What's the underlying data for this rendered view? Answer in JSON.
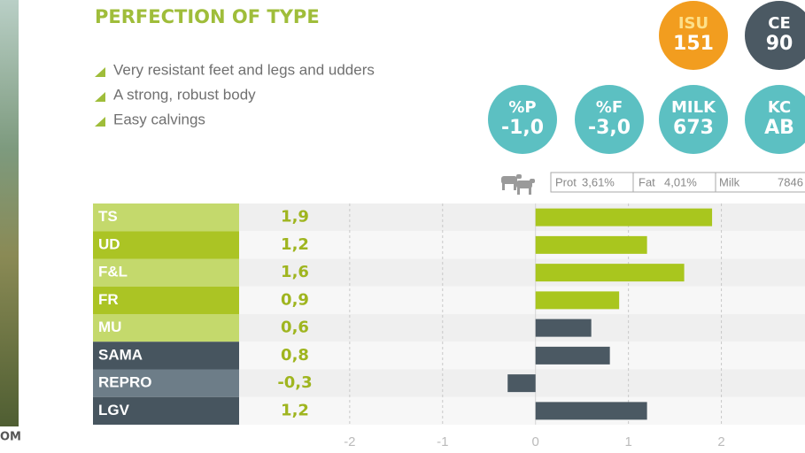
{
  "photo_caption": "OM",
  "header": {
    "title": "PERFECTION OF TYPE",
    "bullets": [
      "Very resistant feet and legs and udders",
      "A strong, robust body",
      "Easy calvings"
    ]
  },
  "badges": [
    {
      "label": "ISU",
      "value": "151",
      "color": "#f29d1f"
    },
    {
      "label": "CE",
      "value": "90",
      "color": "#4b5963"
    },
    {
      "label": "%P",
      "value": "-1,0",
      "color": "#5cc0c2"
    },
    {
      "label": "%F",
      "value": "-3,0",
      "color": "#5cc0c2"
    },
    {
      "label": "MILK",
      "value": "673",
      "color": "#5cc0c2"
    },
    {
      "label": "KC",
      "value": "AB",
      "color": "#5cc0c2"
    }
  ],
  "stats": [
    {
      "label": "Prot",
      "value": "3,61%"
    },
    {
      "label": "Fat",
      "value": "4,01%"
    },
    {
      "label": "Milk",
      "value": "7846"
    }
  ],
  "chart_data": {
    "type": "bar",
    "orientation": "horizontal",
    "categories": [
      "TS",
      "UD",
      "F&L",
      "FR",
      "MU",
      "SAMA",
      "REPRO",
      "LGV"
    ],
    "values": [
      1.9,
      1.2,
      1.6,
      0.9,
      0.6,
      0.8,
      -0.3,
      1.2
    ],
    "value_labels": [
      "1,9",
      "1,2",
      "1,6",
      "0,9",
      "0,6",
      "0,8",
      "-0,3",
      "1,2"
    ],
    "colors": [
      "#a9c61e",
      "#a9c61e",
      "#a9c61e",
      "#a9c61e",
      "#4b5963",
      "#4b5963",
      "#4b5963",
      "#4b5963"
    ],
    "label_colors": [
      "#c4d96c",
      "#abc424",
      "#c4d96c",
      "#abc424",
      "#c4d96c",
      "#47555f",
      "#6d7d88",
      "#47555f"
    ],
    "xlim": [
      -3.19,
      2.9
    ],
    "xticks": [
      -2,
      -1,
      0,
      1,
      2
    ],
    "grid": true
  }
}
